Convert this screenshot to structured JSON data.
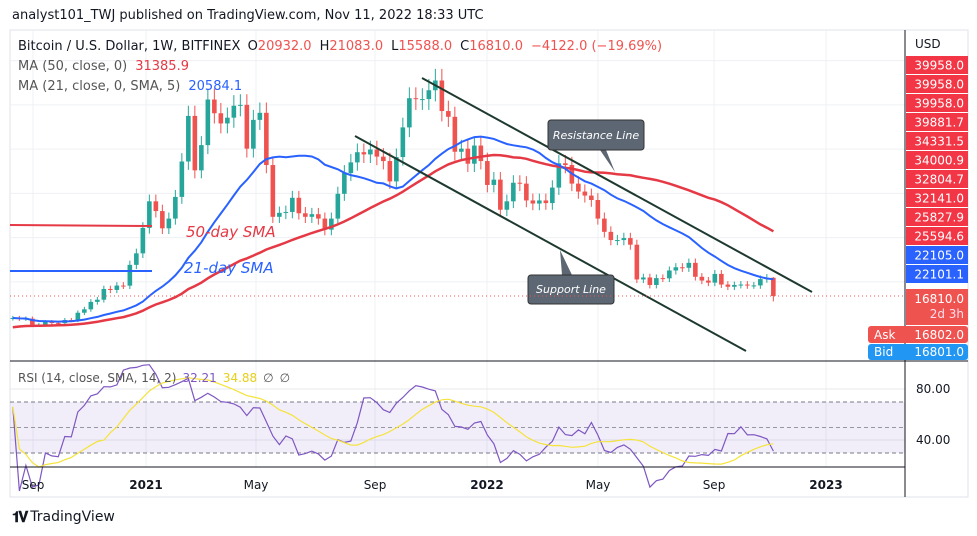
{
  "header": {
    "published": "analyst101_TWJ published on TradingView.com, Nov 11, 2022 18:33 UTC"
  },
  "legend": {
    "symbol": "Bitcoin / U.S. Dollar, 1W, BITFINEX",
    "o_label": "O",
    "o": "20932.0",
    "h_label": "H",
    "h": "21083.0",
    "l_label": "L",
    "l": "15588.0",
    "c_label": "C",
    "c": "16810.0",
    "change": "−4122.0 (−19.69%)",
    "ma50_label": "MA (50, close, 0)",
    "ma50_value": "31385.9",
    "ma21_label": "MA (21, close, 0, SMA, 5)",
    "ma21_value": "20584.1",
    "rsi_label": "RSI (14, close, SMA, 14, 2)",
    "rsi_value": "32.21",
    "rsi_ma_value": "34.88",
    "na1": "∅",
    "na2": "∅"
  },
  "annotations": {
    "resistance": "Resistance Line",
    "support": "Support Line",
    "sma50": "50-day SMA",
    "sma21": "21-day SMA"
  },
  "price_axis": {
    "currency": "USD",
    "red_labels": [
      "39958.0",
      "39958.0",
      "39958.0",
      "39881.7",
      "34331.5",
      "34000.9",
      "32804.7",
      "32141.0",
      "25827.9",
      "25594.6"
    ],
    "blue_labels": [
      "22105.0",
      "22101.1"
    ],
    "last": "16810.0",
    "countdown": "2d 3h",
    "ask_label": "Ask",
    "ask": "16802.0",
    "bid_label": "Bid",
    "bid": "16801.0"
  },
  "rsi_axis": [
    "80.00",
    "40.00"
  ],
  "time_axis": [
    "Sep",
    "2021",
    "May",
    "Sep",
    "2022",
    "May",
    "Sep",
    "2023"
  ],
  "footer": {
    "brand": "TradingView"
  },
  "colors": {
    "up": "#26a69a",
    "down": "#ef5350",
    "ma50": "#e53945",
    "ma21": "#2962ff",
    "rsi": "#7e57c2",
    "rsi_ma": "#f5e33b",
    "trend": "#1e3a2f"
  },
  "chart_data": {
    "type": "candlestick",
    "interval": "1W",
    "start": "2020-08-10",
    "last_candle": {
      "open": 20932.0,
      "high": 21083.0,
      "low": 15588.0,
      "close": 16810.0
    },
    "closes": [
      11850,
      11650,
      11700,
      10300,
      10330,
      10930,
      10740,
      10680,
      11380,
      11360,
      13030,
      13800,
      15480,
      15970,
      18400,
      18180,
      19170,
      19150,
      23850,
      26450,
      32200,
      38200,
      36000,
      32100,
      34300,
      39200,
      47200,
      57500,
      45200,
      50900,
      61200,
      58100,
      55800,
      57100,
      59800,
      60000,
      50100,
      56600,
      58200,
      46400,
      34700,
      35600,
      35800,
      39000,
      35500,
      34700,
      35300,
      34300,
      31800,
      34300,
      39900,
      44600,
      47000,
      49300,
      48800,
      49900,
      48300,
      47300,
      42700,
      48200,
      54900,
      61500,
      61300,
      61300,
      63300,
      65500,
      58600,
      57300,
      49400,
      50100,
      46700,
      50800,
      47300,
      41900,
      43100,
      36300,
      38200,
      42400,
      42200,
      38400,
      37700,
      38400,
      37800,
      41300,
      46800,
      46400,
      42200,
      40400,
      39500,
      38500,
      34300,
      31300,
      29450,
      29450,
      29900,
      28400,
      20550,
      21000,
      19300,
      20850,
      20800,
      22580,
      23300,
      23180,
      24300,
      21150,
      20300,
      19830,
      21800,
      19400,
      18900,
      19300,
      19400,
      19200,
      19200,
      20630,
      20932,
      16810
    ],
    "indicators": [
      "MA 50",
      "MA 21 SMA 5",
      "RSI 14 with SMA 14"
    ],
    "rsi_levels": [
      30,
      50,
      70
    ],
    "scale": "linear"
  }
}
